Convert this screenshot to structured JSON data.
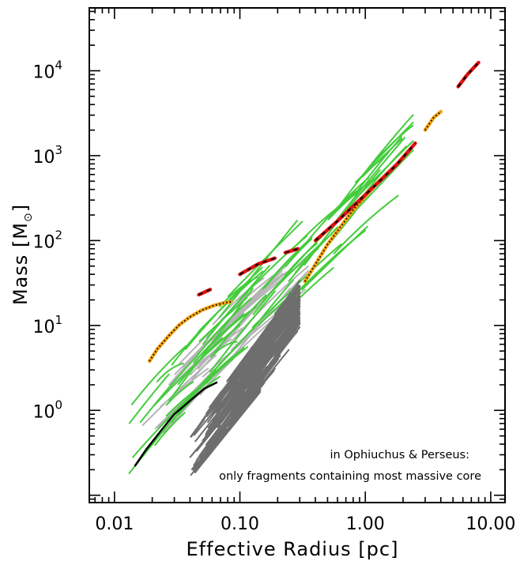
{
  "chart_data": {
    "type": "line",
    "title": "",
    "xlabel": "Effective Radius  [pc]",
    "ylabel": "Mass  [M",
    "ylabel_symbol": "⊙",
    "ylabel_close": "]",
    "xscale": "log",
    "yscale": "log",
    "xlim": [
      0.0063,
      13.0
    ],
    "ylim": [
      0.082,
      55000
    ],
    "xtick_labels": [
      "0.01",
      "0.10",
      "1.00",
      "10.00"
    ],
    "xtick_values": [
      0.01,
      0.1,
      1.0,
      10.0
    ],
    "ytick_labels": [
      {
        "base": "10",
        "exp": "0",
        "value": 1
      },
      {
        "base": "10",
        "exp": "1",
        "value": 10
      },
      {
        "base": "10",
        "exp": "2",
        "value": 100
      },
      {
        "base": "10",
        "exp": "3",
        "value": 1000
      },
      {
        "base": "10",
        "exp": "4",
        "value": 10000
      }
    ],
    "annotation": [
      "in Ophiuchus & Perseus:",
      "only fragments containing most massive core"
    ],
    "colors": {
      "ophiuchus_perseus_fragments": "#6e6e6e",
      "light_fragments": "#b4b4b4",
      "green_fragments": "#44cc3c",
      "orange_dotted": "#f2a20f",
      "red_dashed": "#dd1111",
      "black_track": "#000000"
    },
    "series": [
      {
        "style": "orange-black-dotted",
        "segments": [
          [
            [
              0.019,
              3.8
            ],
            [
              0.022,
              5.3
            ],
            [
              0.027,
              7.5
            ],
            [
              0.033,
              10.2
            ],
            [
              0.04,
              12.6
            ],
            [
              0.05,
              15.2
            ],
            [
              0.062,
              17.2
            ],
            [
              0.075,
              18.5
            ],
            [
              0.085,
              19
            ]
          ],
          [
            [
              0.33,
              33
            ],
            [
              0.5,
              90
            ],
            [
              0.8,
              230
            ],
            [
              1.2,
              450
            ],
            [
              1.8,
              800
            ],
            [
              2.3,
              1200
            ]
          ],
          [
            [
              3.0,
              2000
            ],
            [
              3.5,
              2800
            ],
            [
              4.0,
              3300
            ]
          ]
        ]
      },
      {
        "style": "red-black-dashed",
        "segments": [
          [
            [
              0.047,
              23
            ],
            [
              0.058,
              26.5
            ]
          ],
          [
            [
              0.1,
              40
            ],
            [
              0.14,
              53
            ],
            [
              0.19,
              62
            ]
          ],
          [
            [
              0.23,
              72
            ],
            [
              0.29,
              80
            ]
          ],
          [
            [
              0.4,
              100
            ],
            [
              0.6,
              170
            ],
            [
              0.9,
              300
            ],
            [
              1.3,
              500
            ],
            [
              1.8,
              800
            ],
            [
              2.5,
              1400
            ]
          ],
          [
            [
              5.5,
              6500
            ],
            [
              6.5,
              9000
            ],
            [
              8.0,
              12500
            ]
          ]
        ]
      },
      {
        "style": "black-solid",
        "segments": [
          [
            [
              0.0145,
              0.22
            ],
            [
              0.018,
              0.35
            ],
            [
              0.024,
              0.6
            ],
            [
              0.03,
              0.9
            ],
            [
              0.04,
              1.3
            ],
            [
              0.052,
              1.8
            ],
            [
              0.066,
              2.15
            ]
          ]
        ]
      }
    ]
  }
}
